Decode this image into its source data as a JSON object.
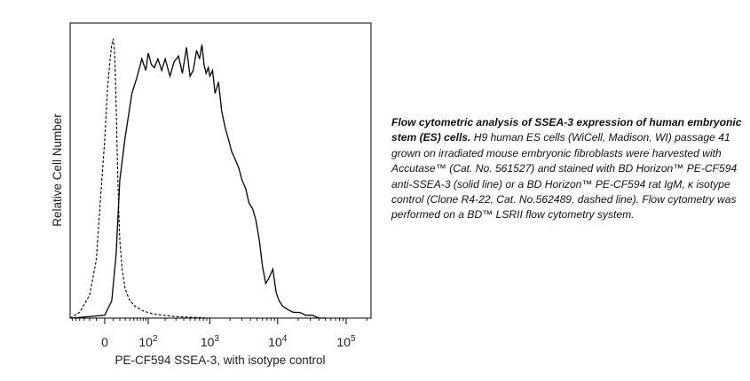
{
  "chart_data": {
    "type": "line",
    "title": "",
    "xlabel": "PE-CF594 SSEA-3, with isotype control",
    "ylabel": "Relative Cell Number",
    "x_scale": "biexponential",
    "xlim": [
      -100,
      200000
    ],
    "ylim": [
      0,
      100
    ],
    "grid": false,
    "ticks": [
      {
        "value": 0,
        "label": "0",
        "exp": ""
      },
      {
        "value": 100,
        "label": "10",
        "exp": "2"
      },
      {
        "value": 1000,
        "label": "10",
        "exp": "3"
      },
      {
        "value": 10000,
        "label": "10",
        "exp": "4"
      },
      {
        "value": 100000,
        "label": "10",
        "exp": "5"
      }
    ],
    "series": [
      {
        "name": "solid line",
        "style": "solid",
        "color": "#000000",
        "x": [
          -60,
          0,
          8,
          14,
          20,
          30,
          45,
          60,
          75,
          90,
          100,
          115,
          130,
          150,
          175,
          200,
          240,
          280,
          330,
          380,
          440,
          500,
          560,
          630,
          700,
          760,
          820,
          880,
          950,
          1000,
          1100,
          1200,
          1350,
          1500,
          1700,
          1900,
          2100,
          2400,
          2700,
          3000,
          3400,
          3800,
          4300,
          4800,
          5400,
          6000,
          6700,
          7500,
          8500,
          9500,
          10500,
          12000,
          14000,
          17000,
          21000,
          26000,
          32000,
          40000,
          50000
        ],
        "y": [
          0,
          1,
          6,
          22,
          48,
          63,
          78,
          84,
          90,
          86,
          92,
          88,
          87,
          90,
          86,
          90,
          84,
          89,
          91,
          85,
          94,
          84,
          86,
          93,
          90,
          95,
          88,
          85,
          87,
          84,
          86,
          78,
          82,
          72,
          66,
          62,
          58,
          55,
          52,
          48,
          45,
          40,
          38,
          34,
          27,
          18,
          12,
          14,
          17,
          9,
          6,
          4,
          3,
          2,
          2,
          1,
          1,
          0,
          0
        ]
      },
      {
        "name": "dashed line",
        "style": "dashed",
        "color": "#000000",
        "x": [
          -80,
          -40,
          -20,
          -10,
          -5,
          0,
          3,
          6,
          8,
          10,
          12,
          14,
          16,
          18,
          20,
          24,
          30,
          40,
          55,
          80,
          120,
          180,
          300,
          500,
          1000,
          2000
        ],
        "y": [
          0,
          2,
          8,
          20,
          40,
          62,
          80,
          90,
          95,
          97,
          92,
          75,
          55,
          38,
          27,
          17,
          10,
          6,
          4,
          2.5,
          1.5,
          1,
          0.5,
          0.3,
          0,
          0
        ]
      }
    ]
  },
  "caption": {
    "lead": "Flow cytometric analysis of SSEA-3 expression of human embryonic stem (ES) cells.",
    "body": " H9 human ES cells (WiCell, Madison, WI) passage 41 grown on irradiated mouse embryonic fibroblasts were harvested with Accutase™ (Cat. No. 561527) and stained with BD Horizon™ PE-CF594 anti-SSEA-3 (solid line) or a BD Horizon™ PE-CF594 rat IgM, κ isotype control (Clone R4-22, Cat. No.562489, dashed line). Flow cytometry was performed on a BD™ LSRII flow cytometry system."
  }
}
